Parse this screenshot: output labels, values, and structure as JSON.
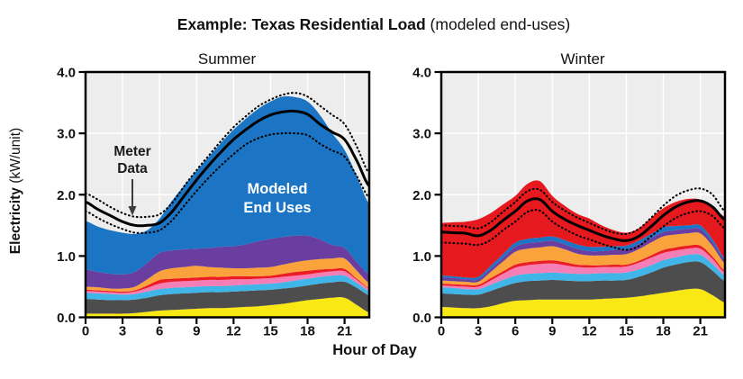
{
  "title": {
    "bold": "Example: Texas Residential Load",
    "normal": " (modeled end-uses)"
  },
  "axes": {
    "x_label": "Hour of Day",
    "y_label_bold": "Electricity",
    "y_label_normal": " (kW/unit)",
    "x_ticks": [
      0,
      3,
      6,
      9,
      12,
      15,
      18,
      21
    ],
    "y_ticks": [
      "4.0",
      "3.0",
      "2.0",
      "1.0",
      "0.0"
    ],
    "ylim": [
      0,
      4.0
    ],
    "xlim": [
      0,
      23
    ],
    "grid": "on"
  },
  "annotations": {
    "meter_data_line1": "Meter",
    "meter_data_line2": "Data",
    "modeled_line1": "Modeled",
    "modeled_line2": "End Uses"
  },
  "colors": {
    "plot_bg": "#EDEDED",
    "grid": "#FFFFFF",
    "frame": "#000000",
    "meter_line": "#000000",
    "annotation": "#3D3D3D"
  },
  "chart_data": [
    {
      "type": "area",
      "title": "Summer",
      "x_hours": [
        0,
        1,
        2,
        3,
        4,
        5,
        6,
        7,
        8,
        9,
        10,
        11,
        12,
        13,
        14,
        15,
        16,
        17,
        18,
        19,
        20,
        21,
        22,
        23
      ],
      "ylim": [
        0,
        4.0
      ],
      "stack_series": [
        {
          "name": "yellow",
          "color": "#F9E814",
          "values": [
            0.06,
            0.06,
            0.06,
            0.06,
            0.07,
            0.09,
            0.11,
            0.12,
            0.13,
            0.14,
            0.15,
            0.15,
            0.16,
            0.17,
            0.18,
            0.2,
            0.22,
            0.25,
            0.28,
            0.3,
            0.32,
            0.32,
            0.2,
            0.08
          ]
        },
        {
          "name": "dark-gray",
          "color": "#4D4D4D",
          "values": [
            0.24,
            0.23,
            0.22,
            0.22,
            0.22,
            0.23,
            0.25,
            0.26,
            0.26,
            0.26,
            0.26,
            0.26,
            0.26,
            0.26,
            0.26,
            0.25,
            0.25,
            0.24,
            0.24,
            0.25,
            0.25,
            0.26,
            0.28,
            0.28
          ]
        },
        {
          "name": "light-blue",
          "color": "#3FB5E8",
          "values": [
            0.1,
            0.1,
            0.1,
            0.09,
            0.09,
            0.1,
            0.1,
            0.1,
            0.1,
            0.1,
            0.1,
            0.1,
            0.1,
            0.1,
            0.1,
            0.1,
            0.1,
            0.11,
            0.11,
            0.11,
            0.11,
            0.1,
            0.08,
            0.07
          ]
        },
        {
          "name": "pink",
          "color": "#F57EB6",
          "values": [
            0.03,
            0.03,
            0.03,
            0.03,
            0.04,
            0.06,
            0.09,
            0.1,
            0.1,
            0.1,
            0.1,
            0.1,
            0.1,
            0.09,
            0.09,
            0.09,
            0.09,
            0.08,
            0.07,
            0.07,
            0.07,
            0.07,
            0.05,
            0.04
          ]
        },
        {
          "name": "red",
          "color": "#EC1C24",
          "values": [
            0.02,
            0.02,
            0.02,
            0.02,
            0.02,
            0.04,
            0.06,
            0.05,
            0.05,
            0.05,
            0.05,
            0.05,
            0.05,
            0.05,
            0.04,
            0.04,
            0.05,
            0.06,
            0.06,
            0.05,
            0.04,
            0.04,
            0.02,
            0.01
          ]
        },
        {
          "name": "orange",
          "color": "#FAA33C",
          "values": [
            0.05,
            0.05,
            0.04,
            0.05,
            0.06,
            0.1,
            0.14,
            0.17,
            0.18,
            0.19,
            0.16,
            0.15,
            0.13,
            0.13,
            0.14,
            0.14,
            0.15,
            0.16,
            0.17,
            0.17,
            0.17,
            0.17,
            0.13,
            0.08
          ]
        },
        {
          "name": "purple",
          "color": "#6A3DA0",
          "values": [
            0.28,
            0.25,
            0.24,
            0.23,
            0.24,
            0.27,
            0.3,
            0.29,
            0.29,
            0.28,
            0.31,
            0.34,
            0.36,
            0.39,
            0.43,
            0.46,
            0.45,
            0.43,
            0.4,
            0.32,
            0.22,
            0.17,
            0.14,
            0.14
          ]
        },
        {
          "name": "blue",
          "color": "#1B75C4",
          "values": [
            0.79,
            0.74,
            0.71,
            0.68,
            0.62,
            0.53,
            0.56,
            0.81,
            1.04,
            1.27,
            1.49,
            1.7,
            1.9,
            2.05,
            2.16,
            2.24,
            2.29,
            2.26,
            2.19,
            2.03,
            1.82,
            1.6,
            1.4,
            1.15
          ]
        }
      ],
      "lines": [
        {
          "name": "meter-lower-bound",
          "style": "dotted",
          "values": [
            1.73,
            1.62,
            1.52,
            1.44,
            1.38,
            1.38,
            1.42,
            1.58,
            1.82,
            2.06,
            2.28,
            2.48,
            2.66,
            2.82,
            2.92,
            2.98,
            3.0,
            3.0,
            2.97,
            2.83,
            2.72,
            2.62,
            2.3,
            1.95
          ]
        },
        {
          "name": "meter-data",
          "style": "solid",
          "values": [
            1.88,
            1.76,
            1.66,
            1.56,
            1.5,
            1.5,
            1.54,
            1.72,
            1.98,
            2.24,
            2.48,
            2.7,
            2.9,
            3.06,
            3.2,
            3.3,
            3.35,
            3.36,
            3.31,
            3.15,
            3.02,
            2.9,
            2.55,
            2.14
          ]
        },
        {
          "name": "meter-upper-bound",
          "style": "dotted",
          "values": [
            2.02,
            1.92,
            1.8,
            1.7,
            1.64,
            1.64,
            1.68,
            1.86,
            2.14,
            2.4,
            2.64,
            2.88,
            3.1,
            3.28,
            3.44,
            3.55,
            3.63,
            3.66,
            3.6,
            3.45,
            3.3,
            3.15,
            2.78,
            2.35
          ]
        }
      ]
    },
    {
      "type": "area",
      "title": "Winter",
      "x_hours": [
        0,
        1,
        2,
        3,
        4,
        5,
        6,
        7,
        8,
        9,
        10,
        11,
        12,
        13,
        14,
        15,
        16,
        17,
        18,
        19,
        20,
        21,
        22,
        23
      ],
      "ylim": [
        0,
        4.0
      ],
      "stack_series": [
        {
          "name": "yellow",
          "color": "#F9E814",
          "values": [
            0.17,
            0.16,
            0.15,
            0.15,
            0.18,
            0.23,
            0.27,
            0.28,
            0.29,
            0.29,
            0.29,
            0.29,
            0.29,
            0.3,
            0.31,
            0.32,
            0.34,
            0.37,
            0.4,
            0.43,
            0.46,
            0.46,
            0.36,
            0.24
          ]
        },
        {
          "name": "dark-gray",
          "color": "#4D4D4D",
          "values": [
            0.22,
            0.22,
            0.22,
            0.22,
            0.25,
            0.27,
            0.29,
            0.31,
            0.31,
            0.32,
            0.31,
            0.3,
            0.3,
            0.3,
            0.29,
            0.29,
            0.32,
            0.36,
            0.41,
            0.43,
            0.44,
            0.44,
            0.4,
            0.35
          ]
        },
        {
          "name": "light-blue",
          "color": "#3FB5E8",
          "values": [
            0.1,
            0.1,
            0.09,
            0.09,
            0.1,
            0.11,
            0.12,
            0.12,
            0.12,
            0.12,
            0.12,
            0.12,
            0.12,
            0.12,
            0.12,
            0.12,
            0.12,
            0.12,
            0.12,
            0.12,
            0.12,
            0.12,
            0.11,
            0.09
          ]
        },
        {
          "name": "pink",
          "color": "#F57EB6",
          "values": [
            0.03,
            0.03,
            0.04,
            0.04,
            0.07,
            0.1,
            0.13,
            0.14,
            0.15,
            0.15,
            0.13,
            0.11,
            0.1,
            0.1,
            0.1,
            0.1,
            0.11,
            0.12,
            0.12,
            0.11,
            0.1,
            0.1,
            0.08,
            0.05
          ]
        },
        {
          "name": "red",
          "color": "#EC1C24",
          "values": [
            0.03,
            0.03,
            0.03,
            0.03,
            0.04,
            0.04,
            0.05,
            0.05,
            0.05,
            0.05,
            0.05,
            0.04,
            0.04,
            0.03,
            0.04,
            0.03,
            0.03,
            0.04,
            0.05,
            0.05,
            0.05,
            0.05,
            0.04,
            0.03
          ]
        },
        {
          "name": "orange",
          "color": "#FAA33C",
          "values": [
            0.05,
            0.05,
            0.05,
            0.05,
            0.1,
            0.16,
            0.21,
            0.22,
            0.22,
            0.23,
            0.21,
            0.18,
            0.16,
            0.16,
            0.16,
            0.17,
            0.19,
            0.21,
            0.22,
            0.21,
            0.2,
            0.2,
            0.17,
            0.12
          ]
        },
        {
          "name": "purple",
          "color": "#6A3DA0",
          "values": [
            0.05,
            0.05,
            0.04,
            0.04,
            0.05,
            0.06,
            0.08,
            0.09,
            0.09,
            0.09,
            0.08,
            0.08,
            0.07,
            0.07,
            0.08,
            0.08,
            0.08,
            0.07,
            0.07,
            0.07,
            0.07,
            0.07,
            0.06,
            0.05
          ]
        },
        {
          "name": "blue",
          "color": "#1B75C4",
          "values": [
            0.03,
            0.03,
            0.03,
            0.04,
            0.05,
            0.06,
            0.07,
            0.07,
            0.07,
            0.07,
            0.07,
            0.07,
            0.07,
            0.07,
            0.06,
            0.06,
            0.06,
            0.07,
            0.08,
            0.07,
            0.06,
            0.06,
            0.05,
            0.03
          ]
        },
        {
          "name": "red-top",
          "color": "#E6191F",
          "values": [
            0.86,
            0.88,
            0.91,
            0.94,
            0.86,
            0.81,
            0.76,
            0.9,
            0.92,
            0.66,
            0.56,
            0.5,
            0.46,
            0.35,
            0.26,
            0.21,
            0.2,
            0.26,
            0.31,
            0.39,
            0.43,
            0.42,
            0.53,
            0.68
          ]
        }
      ],
      "lines": [
        {
          "name": "meter-lower-bound",
          "style": "dotted",
          "values": [
            1.22,
            1.21,
            1.2,
            1.18,
            1.26,
            1.42,
            1.56,
            1.72,
            1.74,
            1.56,
            1.44,
            1.34,
            1.27,
            1.2,
            1.14,
            1.1,
            1.16,
            1.32,
            1.48,
            1.62,
            1.7,
            1.73,
            1.65,
            1.45
          ]
        },
        {
          "name": "meter-data",
          "style": "solid",
          "values": [
            1.39,
            1.38,
            1.37,
            1.33,
            1.42,
            1.58,
            1.73,
            1.9,
            1.92,
            1.73,
            1.6,
            1.5,
            1.42,
            1.34,
            1.28,
            1.25,
            1.32,
            1.48,
            1.66,
            1.8,
            1.88,
            1.9,
            1.8,
            1.59
          ]
        },
        {
          "name": "meter-upper-bound",
          "style": "dotted",
          "values": [
            1.5,
            1.49,
            1.48,
            1.45,
            1.55,
            1.72,
            1.88,
            2.06,
            2.08,
            1.88,
            1.74,
            1.63,
            1.54,
            1.45,
            1.38,
            1.36,
            1.44,
            1.62,
            1.82,
            1.98,
            2.07,
            2.1,
            2.0,
            1.73
          ]
        }
      ]
    }
  ]
}
